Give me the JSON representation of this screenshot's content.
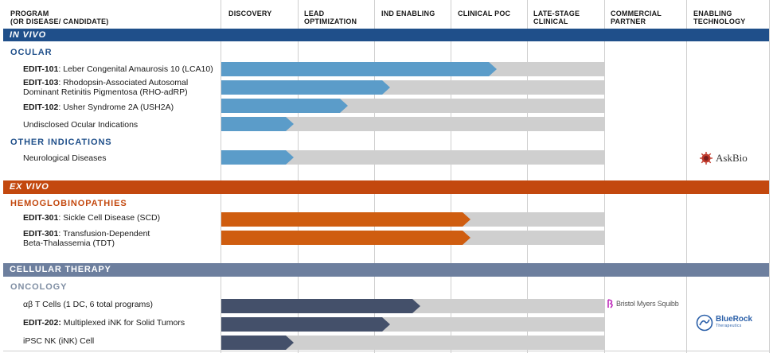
{
  "columns": {
    "program": {
      "line1": "PROGRAM",
      "line2": "(OR DISEASE/ CANDIDATE)"
    },
    "discovery": {
      "line1": "DISCOVERY",
      "line2": ""
    },
    "lead": {
      "line1": "LEAD",
      "line2": "OPTIMIZATION"
    },
    "ind": {
      "line1": "IND ENABLING",
      "line2": ""
    },
    "poc": {
      "line1": "CLINICAL POC",
      "line2": ""
    },
    "late": {
      "line1": "LATE-STAGE",
      "line2": "CLINICAL"
    },
    "partner": {
      "line1": "COMMERCIAL",
      "line2": "PARTNER"
    },
    "tech": {
      "line1": "ENABLING",
      "line2": "TECHNOLOGY"
    }
  },
  "sections": {
    "in_vivo": "IN VIVO",
    "ex_vivo": "EX VIVO",
    "cellular": "CELLULAR THERAPY"
  },
  "subsections": {
    "ocular": "OCULAR",
    "other": "OTHER INDICATIONS",
    "hemo": "HEMOGLOBINOPATHIES",
    "oncology": "ONCOLOGY"
  },
  "programs": [
    {
      "code": "EDIT-101",
      "text": ": Leber Congenital Amaurosis 10 (LCA10)",
      "line2": "",
      "progress": 0.72,
      "color": "#5b9cc9"
    },
    {
      "code": "EDIT-103",
      "text": ": Rhodopsin-Associated Autosomal",
      "line2": "Dominant Retinitis Pigmentosa (RHO-adRP)",
      "progress": 0.44,
      "color": "#5b9cc9"
    },
    {
      "code": "EDIT-102",
      "text": ": Usher Syndrome 2A (USH2A)",
      "line2": "",
      "progress": 0.33,
      "color": "#5b9cc9"
    },
    {
      "code": "",
      "text": "Undisclosed Ocular Indications",
      "line2": "",
      "progress": 0.19,
      "color": "#5b9cc9"
    },
    {
      "code": "",
      "text": "Neurological Diseases",
      "line2": "",
      "progress": 0.19,
      "color": "#5b9cc9"
    },
    {
      "code": "EDIT-301",
      "text": ": Sickle Cell Disease (SCD)",
      "line2": "",
      "progress": 0.65,
      "color": "#cf5d10"
    },
    {
      "code": "EDIT-301",
      "text": ": Transfusion-Dependent",
      "line2": "Beta-Thalassemia (TDT)",
      "progress": 0.65,
      "color": "#cf5d10"
    },
    {
      "code": "",
      "text": "αβ T Cells (1 DC, 6 total programs)",
      "line2": "",
      "progress": 0.52,
      "color": "#44506a"
    },
    {
      "code": "EDIT-202:",
      "text": " Multiplexed iNK for Solid Tumors",
      "line2": "",
      "progress": 0.44,
      "color": "#44506a"
    },
    {
      "code": "",
      "text": "iPSC NK (iNK) Cell",
      "line2": "",
      "progress": 0.19,
      "color": "#44506a"
    }
  ],
  "partners": {
    "askbio": "AskBio",
    "bms": "Bristol Myers Squibb",
    "bluerock": "BlueRock",
    "bluerock_sub": "Therapeutics"
  },
  "colors": {
    "in_vivo": "#1f4f8a",
    "ex_vivo": "#c3480e",
    "cellular": "#6d7f9e",
    "track": "#cfcfcf",
    "bms": "#be2bbb",
    "askbio": "#c0392b"
  }
}
